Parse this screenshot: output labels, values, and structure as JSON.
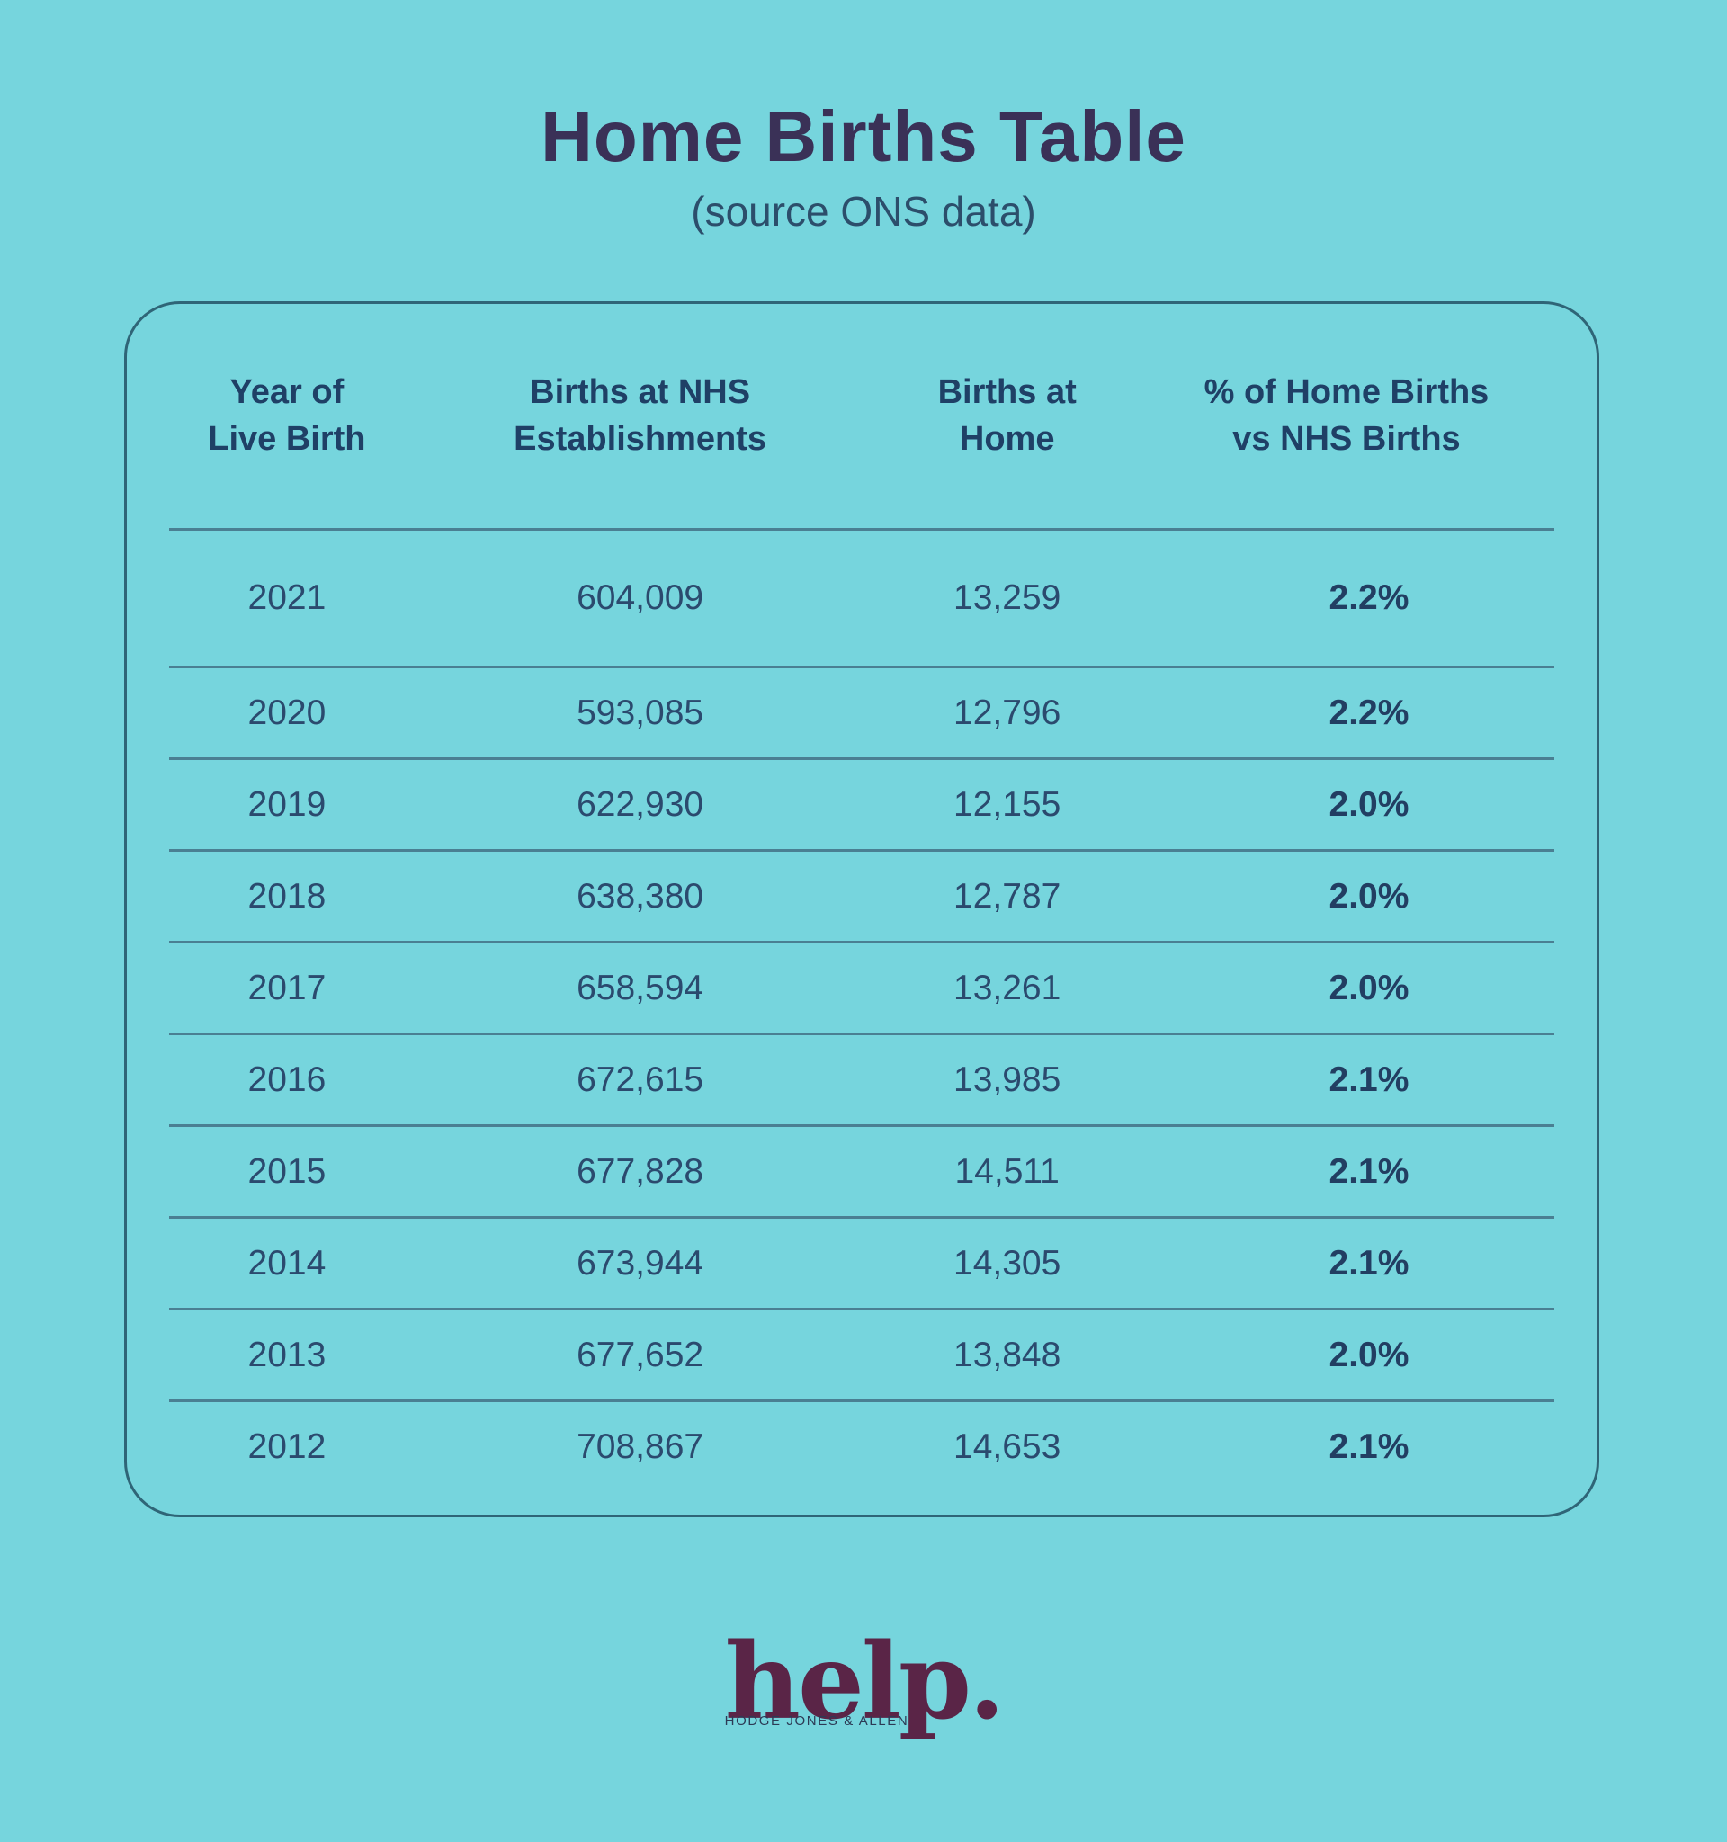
{
  "title": "Home Births Table",
  "subtitle": "(source ONS data)",
  "colors": {
    "background": "#76d5dd",
    "title_text": "#3a3157",
    "body_text": "#2b4a6e",
    "header_text": "#1f4066",
    "separator_line": "#4a7f92",
    "card_border": "#2f6577",
    "logo_brand": "#5a2547"
  },
  "table": {
    "headers": [
      {
        "label": "Year of\nLive Birth"
      },
      {
        "label": "Births at NHS\nEstablishments"
      },
      {
        "label": "Births at\nHome"
      },
      {
        "label": "% of Home Births\nvs NHS Births"
      }
    ],
    "rows": [
      {
        "year": "2021",
        "nhs_births": "604,009",
        "home_births": "13,259",
        "percent": "2.2%"
      },
      {
        "year": "2020",
        "nhs_births": "593,085",
        "home_births": "12,796",
        "percent": "2.2%"
      },
      {
        "year": "2019",
        "nhs_births": "622,930",
        "home_births": "12,155",
        "percent": "2.0%"
      },
      {
        "year": "2018",
        "nhs_births": "638,380",
        "home_births": "12,787",
        "percent": "2.0%"
      },
      {
        "year": "2017",
        "nhs_births": "658,594",
        "home_births": "13,261",
        "percent": "2.0%"
      },
      {
        "year": "2016",
        "nhs_births": "672,615",
        "home_births": "13,985",
        "percent": "2.1%"
      },
      {
        "year": "2015",
        "nhs_births": "677,828",
        "home_births": "14,511",
        "percent": "2.1%"
      },
      {
        "year": "2014",
        "nhs_births": "673,944",
        "home_births": "14,305",
        "percent": "2.1%"
      },
      {
        "year": "2013",
        "nhs_births": "677,652",
        "home_births": "13,848",
        "percent": "2.0%"
      },
      {
        "year": "2012",
        "nhs_births": "708,867",
        "home_births": "14,653",
        "percent": "2.1%"
      }
    ]
  },
  "logo": {
    "wordmark": "help.",
    "tagline": "HODGE JONES & ALLEN"
  },
  "chart_data": {
    "type": "table",
    "title": "Home Births Table",
    "subtitle": "(source ONS data)",
    "columns": [
      "Year of Live Birth",
      "Births at NHS Establishments",
      "Births at Home",
      "% of Home Births vs NHS Births"
    ],
    "rows": [
      [
        "2021",
        604009,
        13259,
        "2.2%"
      ],
      [
        "2020",
        593085,
        12796,
        "2.2%"
      ],
      [
        "2019",
        622930,
        12155,
        "2.0%"
      ],
      [
        "2018",
        638380,
        12787,
        "2.0%"
      ],
      [
        "2017",
        658594,
        13261,
        "2.0%"
      ],
      [
        "2016",
        672615,
        13985,
        "2.1%"
      ],
      [
        "2015",
        677828,
        14511,
        "2.1%"
      ],
      [
        "2014",
        673944,
        14305,
        "2.1%"
      ],
      [
        "2013",
        677652,
        13848,
        "2.0%"
      ],
      [
        "2012",
        708867,
        14653,
        "2.1%"
      ]
    ]
  }
}
